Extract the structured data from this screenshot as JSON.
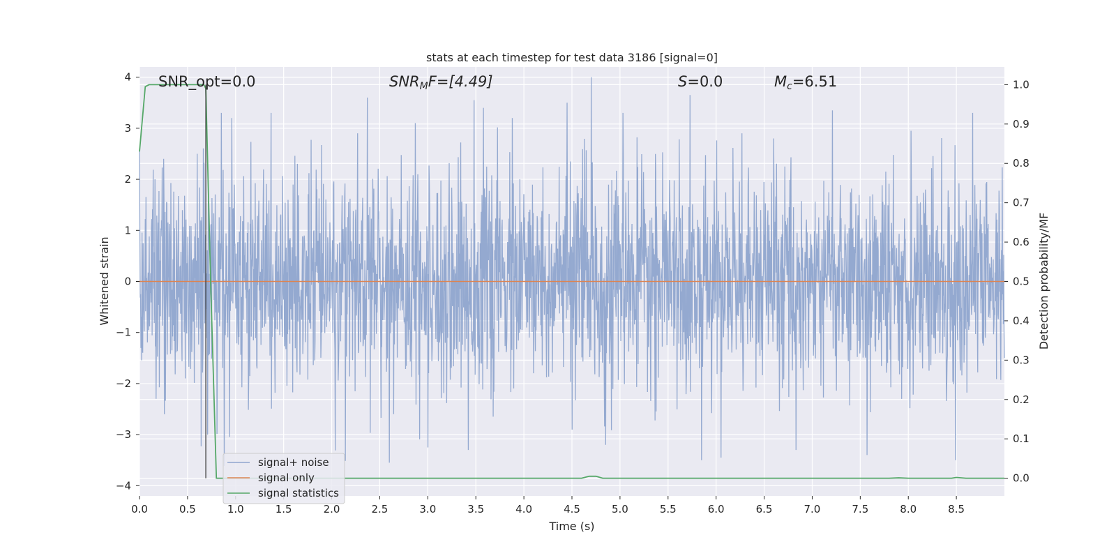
{
  "chart_data": {
    "type": "line",
    "title": "stats at each timestep for test data 3186 [signal=0]",
    "xlabel": "Time (s)",
    "ylabel": "Whitened strain",
    "y2label": "Detection probability/MF",
    "xlim": [
      0.0,
      9.0
    ],
    "ylim": [
      -4.2,
      4.2
    ],
    "y2lim": [
      -0.045,
      1.045
    ],
    "xticks": [
      "0.0",
      "0.5",
      "1.0",
      "1.5",
      "2.0",
      "2.5",
      "3.0",
      "3.5",
      "4.0",
      "4.5",
      "5.0",
      "5.5",
      "6.0",
      "6.5",
      "7.0",
      "7.5",
      "8.0",
      "8.5"
    ],
    "yticks": [
      "4",
      "3",
      "2",
      "1",
      "0",
      "−1",
      "−2",
      "−3",
      "−4"
    ],
    "y2ticks": [
      "1.0",
      "0.9",
      "0.8",
      "0.7",
      "0.6",
      "0.5",
      "0.4",
      "0.3",
      "0.2",
      "0.1",
      "0.0"
    ],
    "grid": true,
    "legend_position": "lower-left",
    "annotations": {
      "snr_opt": "SNR_opt=0.0",
      "snr_mf_base": "SNR",
      "snr_mf_sub": "M",
      "snr_mf_tail": "F=[4.49]",
      "s_label": "S",
      "s_value": "=0.0",
      "mc_base": "M",
      "mc_sub": "c",
      "mc_value": "=6.51"
    },
    "vline_x": 0.69,
    "series": [
      {
        "name": "signal+ noise",
        "axis": "left",
        "color": "#8fa5ce",
        "description_range": [
          -3.9,
          4.0
        ],
        "note": "dense whitened-strain noise; values drawn procedurally",
        "peaks": [
          [
            0.0,
            2.6
          ],
          [
            0.25,
            2.4
          ],
          [
            0.6,
            2.5
          ],
          [
            0.85,
            3.3
          ],
          [
            0.96,
            3.2
          ],
          [
            1.37,
            3.3
          ],
          [
            2.27,
            2.9
          ],
          [
            2.37,
            3.6
          ],
          [
            2.87,
            3.1
          ],
          [
            3.48,
            3.55
          ],
          [
            3.58,
            3.4
          ],
          [
            3.88,
            3.2
          ],
          [
            4.45,
            3.5
          ],
          [
            4.7,
            4.0
          ],
          [
            5.03,
            3.3
          ],
          [
            5.73,
            3.65
          ],
          [
            6.27,
            2.9
          ],
          [
            6.6,
            2.8
          ],
          [
            7.21,
            3.35
          ],
          [
            8.03,
            2.95
          ],
          [
            8.67,
            3.3
          ]
        ],
        "troughs": [
          [
            0.26,
            -2.6
          ],
          [
            0.71,
            -3.0
          ],
          [
            2.6,
            -3.55
          ],
          [
            3.0,
            -3.25
          ],
          [
            3.42,
            -3.3
          ],
          [
            4.5,
            -2.9
          ],
          [
            4.85,
            -3.2
          ],
          [
            5.85,
            -3.5
          ],
          [
            6.05,
            -3.45
          ],
          [
            6.83,
            -3.3
          ],
          [
            7.57,
            -3.4
          ],
          [
            8.49,
            -3.5
          ]
        ]
      },
      {
        "name": "signal only",
        "axis": "left",
        "color": "#dd8452",
        "x": [
          0.0,
          9.0
        ],
        "y": [
          0.0,
          0.0
        ]
      },
      {
        "name": "signal statistics",
        "axis": "right",
        "color": "#55a868",
        "x": [
          0.0,
          0.06,
          0.1,
          0.15,
          0.2,
          0.3,
          0.4,
          0.5,
          0.6,
          0.67,
          0.69,
          0.74,
          0.8,
          0.9,
          1.0,
          2.0,
          3.0,
          4.0,
          4.6,
          4.68,
          4.75,
          4.82,
          5.0,
          6.0,
          7.0,
          7.8,
          7.9,
          8.0,
          8.45,
          8.5,
          8.6,
          9.0
        ],
        "y": [
          0.83,
          0.995,
          1.0,
          1.0,
          1.0,
          1.0,
          1.0,
          1.0,
          1.0,
          1.0,
          0.99,
          0.5,
          0.0,
          0.0,
          0.0,
          0.0,
          0.0,
          0.0,
          0.0,
          0.005,
          0.005,
          0.0,
          0.0,
          0.0,
          0.0,
          0.0,
          0.001,
          0.0,
          0.0,
          0.002,
          0.0,
          0.0
        ]
      }
    ]
  }
}
